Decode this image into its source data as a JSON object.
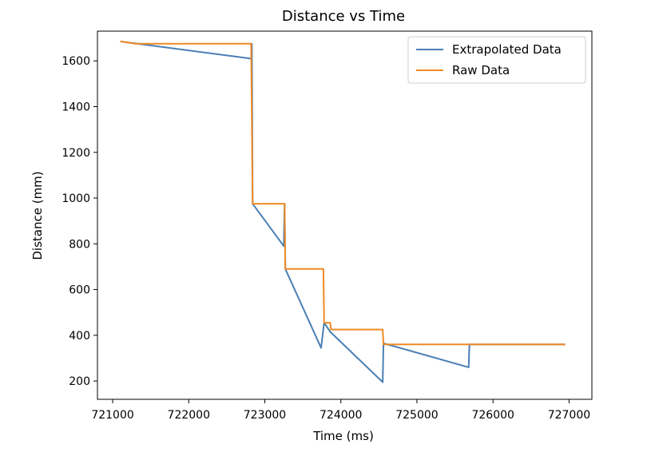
{
  "chart_data": {
    "type": "line",
    "title": "Distance vs Time",
    "xlabel": "Time (ms)",
    "ylabel": "Distance (mm)",
    "xlim": [
      720800,
      727300
    ],
    "ylim": [
      120,
      1730
    ],
    "xticks": [
      721000,
      722000,
      723000,
      724000,
      725000,
      726000,
      727000
    ],
    "yticks": [
      200,
      400,
      600,
      800,
      1000,
      1200,
      1400,
      1600
    ],
    "grid": false,
    "legend": "top-right",
    "series": [
      {
        "name": "Extrapolated Data",
        "color": "#4a7fb5",
        "points": [
          [
            721100,
            1685
          ],
          [
            722820,
            1610
          ],
          [
            722830,
            1675
          ],
          [
            722840,
            975
          ],
          [
            723250,
            790
          ],
          [
            723260,
            975
          ],
          [
            723270,
            690
          ],
          [
            723740,
            345
          ],
          [
            723780,
            455
          ],
          [
            723860,
            415
          ],
          [
            724550,
            195
          ],
          [
            724560,
            365
          ],
          [
            725680,
            260
          ],
          [
            725690,
            360
          ],
          [
            726950,
            360
          ]
        ]
      },
      {
        "name": "Raw Data",
        "color": "#f08a24",
        "points": [
          [
            721100,
            1685
          ],
          [
            721300,
            1675
          ],
          [
            722820,
            1675
          ],
          [
            722840,
            975
          ],
          [
            723260,
            975
          ],
          [
            723270,
            690
          ],
          [
            723770,
            690
          ],
          [
            723780,
            455
          ],
          [
            723860,
            455
          ],
          [
            723870,
            425
          ],
          [
            724550,
            425
          ],
          [
            724560,
            360
          ],
          [
            726950,
            360
          ]
        ]
      }
    ]
  }
}
